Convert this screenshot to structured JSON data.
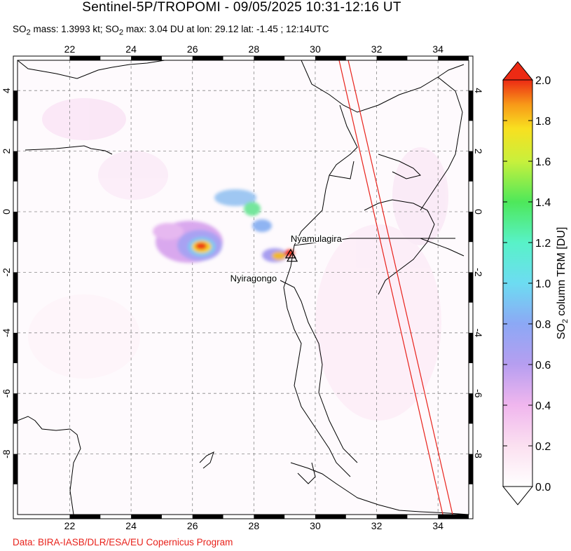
{
  "header": {
    "title": "Sentinel-5P/TROPOMI - 09/05/2025 10:31-12:16 UT",
    "subtitle_html": "SO<sub>2</sub> mass: 1.3993 kt; SO<sub>2</sub> max: 3.04 DU at lon: 29.12 lat: -1.45 ; 12:14UTC"
  },
  "map": {
    "lon_range": [
      20.3,
      35.0
    ],
    "lat_range": [
      -10.0,
      5.0
    ],
    "lon_ticks": [
      22,
      24,
      26,
      28,
      30,
      32,
      34
    ],
    "lat_ticks": [
      4,
      2,
      0,
      -2,
      -4,
      -6,
      -8
    ],
    "lon_tick_labels": [
      "22",
      "24",
      "26",
      "28",
      "30",
      "32",
      "34"
    ],
    "lat_tick_labels": [
      "4",
      "2",
      "0",
      "-2",
      "-4",
      "-6",
      "-8"
    ],
    "grid": true,
    "volcanoes": [
      {
        "name": "Nyamulagira",
        "lon": 29.2,
        "lat": -1.41
      },
      {
        "name": "Nyiragongo",
        "lon": 29.25,
        "lat": -1.52
      }
    ],
    "colors": {
      "land_border": "#000000",
      "swath_edge": "#e8221b",
      "grid": "#888888"
    }
  },
  "colorbar": {
    "label": "SO2 column TRM [DU]",
    "min": 0.0,
    "max": 2.0,
    "ticks": [
      "0.0",
      "0.2",
      "0.4",
      "0.6",
      "0.8",
      "1.0",
      "1.2",
      "1.4",
      "1.6",
      "1.8",
      "2.0"
    ]
  },
  "footer": {
    "credit": "Data: BIRA-IASB/DLR/ESA/EU Copernicus Program"
  }
}
